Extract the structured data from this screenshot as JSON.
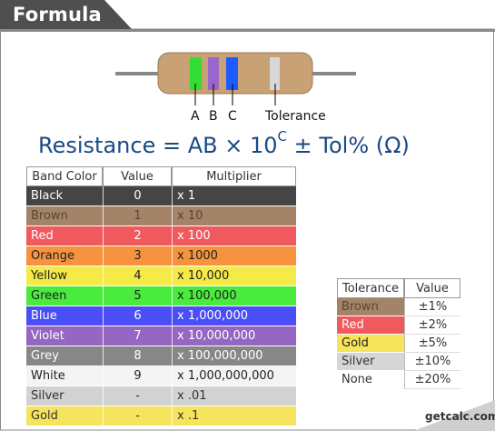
{
  "header": {
    "title": "Formula"
  },
  "resistor": {
    "labels": [
      "A",
      "B",
      "C",
      "Tolerance"
    ],
    "body_color": "#c8a274",
    "band_colors": [
      "#33dd33",
      "#9966cc",
      "#1e5bff",
      "#d8d8d8"
    ]
  },
  "formula": {
    "left": "Resistance",
    "eq": "=",
    "ab": "AB",
    "times": "× 10",
    "exp": "C",
    "tail": "± Tol% (Ω)"
  },
  "band_table": {
    "headers": [
      "Band Color",
      "Value",
      "Multiplier"
    ],
    "rows": [
      {
        "color": "Black",
        "value": "0",
        "multiplier": "x 1",
        "bg": "#454545",
        "fg": "#ffffff"
      },
      {
        "color": "Brown",
        "value": "1",
        "multiplier": "x 10",
        "bg": "#a48468",
        "fg": "#5a4634"
      },
      {
        "color": "Red",
        "value": "2",
        "multiplier": "x 100",
        "bg": "#f0595e",
        "fg": "#ffffff"
      },
      {
        "color": "Orange",
        "value": "3",
        "multiplier": "x 1000",
        "bg": "#f7923e",
        "fg": "#222222"
      },
      {
        "color": "Yellow",
        "value": "4",
        "multiplier": "x 10,000",
        "bg": "#f5ea48",
        "fg": "#222222"
      },
      {
        "color": "Green",
        "value": "5",
        "multiplier": "x 100,000",
        "bg": "#49ec3e",
        "fg": "#222222"
      },
      {
        "color": "Blue",
        "value": "6",
        "multiplier": "x 1,000,000",
        "bg": "#4a4ef7",
        "fg": "#ffffff"
      },
      {
        "color": "Violet",
        "value": "7",
        "multiplier": "x 10,000,000",
        "bg": "#9566c2",
        "fg": "#ffffff"
      },
      {
        "color": "Grey",
        "value": "8",
        "multiplier": "x 100,000,000",
        "bg": "#878787",
        "fg": "#ffffff"
      },
      {
        "color": "White",
        "value": "9",
        "multiplier": "x 1,000,000,000",
        "bg": "#f4f4f4",
        "fg": "#222222"
      },
      {
        "color": "Silver",
        "value": "-",
        "multiplier": "x .01",
        "bg": "#d2d2d2",
        "fg": "#333333"
      },
      {
        "color": "Gold",
        "value": "-",
        "multiplier": "x .1",
        "bg": "#f5e45c",
        "fg": "#333333"
      }
    ]
  },
  "tolerance_table": {
    "headers": [
      "Tolerance",
      "Value"
    ],
    "rows": [
      {
        "name": "Brown",
        "value": "±1%",
        "bg": "#a48468",
        "fg": "#5a4634"
      },
      {
        "name": "Red",
        "value": "±2%",
        "bg": "#f0595e",
        "fg": "#ffffff"
      },
      {
        "name": "Gold",
        "value": "±5%",
        "bg": "#f5e45c",
        "fg": "#222222"
      },
      {
        "name": "Silver",
        "value": "±10%",
        "bg": "#d6d6d6",
        "fg": "#333333"
      },
      {
        "name": "None",
        "value": "±20%",
        "bg": "#ffffff",
        "fg": "#333333"
      }
    ]
  },
  "logo": {
    "text": "getcalc.com"
  }
}
